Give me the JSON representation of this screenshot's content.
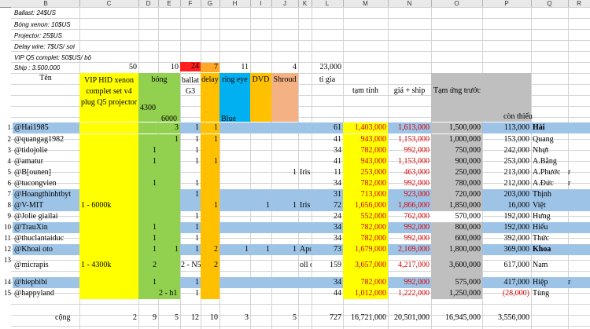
{
  "columns": [
    "B",
    "C",
    "D",
    "E",
    "F",
    "G",
    "H",
    "I",
    "J",
    "K",
    "L",
    "M",
    "N",
    "O",
    "P",
    "Q",
    "R"
  ],
  "notes": [
    "Ballast: 24$US",
    "Bóng xenon: 10$US",
    "Projector: 25$US",
    "Delay wire: 7$US/ sợi",
    "VIP Q5 complet: 50$US/ bộ",
    "Ship : 3.500.000"
  ],
  "counts": {
    "c": "50",
    "e": "10",
    "f": "24",
    "h": "11",
    "j": "4",
    "l": "23,000"
  },
  "headers": {
    "ten": "Tên",
    "vip": "VIP HID xenon complet set v4 plug Q5 projector",
    "bong": "bóng",
    "b4300": "4300",
    "b6000": "6000",
    "ballat": "ballat G3",
    "delay": "delay",
    "ringeye": "ring eye",
    "blue": "Blue",
    "dvd": "DVD",
    "shroud": "Shroud",
    "tigia": "ti gia",
    "tamtinh": "tạm tính",
    "giaship": "giá + ship",
    "tamung": "Tạm ứng trước",
    "conthieu": "còn thiếu"
  },
  "rows": [
    {
      "n": "1",
      "name": "@Hai1985",
      "c": "",
      "d": "",
      "e": "3",
      "f": "1",
      "g": "1",
      "h": "",
      "i": "",
      "j": "",
      "k": "",
      "l": "61",
      "m": "1,403,000",
      "nn": "1,613,000",
      "o": "1,500,000",
      "p": "113,000",
      "q": "Hải",
      "r": ""
    },
    {
      "n": "2",
      "name": "@quangag1982",
      "c": "",
      "d": "",
      "e": "1",
      "f": "1",
      "g": "1",
      "h": "",
      "i": "",
      "j": "",
      "k": "",
      "l": "41",
      "m": "943,000",
      "nn": "1,153,000",
      "o": "1,000,000",
      "p": "153,000",
      "q": "Quang",
      "r": ""
    },
    {
      "n": "3",
      "name": "@tidojolie",
      "c": "",
      "d": "1",
      "e": "",
      "f": "1",
      "g": "",
      "h": "",
      "i": "",
      "j": "",
      "k": "",
      "l": "34",
      "m": "782,000",
      "nn": "992,000",
      "o": "750,000",
      "p": "242,000",
      "q": "Nhựt",
      "r": ""
    },
    {
      "n": "4",
      "name": "@amatur",
      "c": "",
      "d": "1",
      "e": "",
      "f": "1",
      "g": "1",
      "h": "",
      "i": "",
      "j": "",
      "k": "",
      "l": "41",
      "m": "943,000",
      "nn": "1,153,000",
      "o": "900,000",
      "p": "253,000",
      "q": "A.Bằng",
      "r": ""
    },
    {
      "n": "5",
      "name": "@B[ounen]",
      "c": "",
      "d": "",
      "e": "",
      "f": "",
      "g": "",
      "h": "",
      "i": "",
      "j": "1",
      "k": "Iris",
      "l": "11",
      "m": "253,000",
      "nn": "463,000",
      "o": "250,000",
      "p": "213,000",
      "q": "A.Phước",
      "r": "r"
    },
    {
      "n": "6",
      "name": "@tucongvien",
      "c": "",
      "d": "1",
      "e": "",
      "f": "1",
      "g": "",
      "h": "",
      "i": "",
      "j": "",
      "k": "",
      "l": "34",
      "m": "782,000",
      "nn": "992,000",
      "o": "780,000",
      "p": "212,000",
      "q": "A.Đức",
      "r": "r"
    },
    {
      "n": "7",
      "name": "@Hoangthinhtbyt",
      "c": "",
      "d": "",
      "e": "",
      "f": "1",
      "g": "",
      "h": "",
      "i": "",
      "j": "",
      "k": "",
      "l": "31",
      "m": "713,000",
      "nn": "923,000",
      "o": "720,000",
      "p": "203,000",
      "q": "Thịnh",
      "r": ""
    },
    {
      "n": "8",
      "name": "@V-MIT",
      "c": "1 - 6000k",
      "d": "",
      "e": "",
      "f": "",
      "g": "1",
      "h": "",
      "i": "1",
      "j": "1",
      "k": "Iris",
      "l": "72",
      "m": "1,656,000",
      "nn": "1,866,000",
      "o": "1,850,000",
      "p": "16,000",
      "q": "Việt",
      "r": ""
    },
    {
      "n": "9",
      "name": "@Jolie giailai",
      "c": "",
      "d": "",
      "e": "",
      "f": "1",
      "g": "",
      "h": "",
      "i": "",
      "j": "",
      "k": "",
      "l": "24",
      "m": "552,000",
      "nn": "762,000",
      "o": "570,000",
      "p": "192,000",
      "q": "Hưng",
      "r": ""
    },
    {
      "n": "10",
      "name": "@TrauXin",
      "c": "",
      "d": "1",
      "e": "",
      "f": "1",
      "g": "",
      "h": "",
      "i": "",
      "j": "",
      "k": "",
      "l": "34",
      "m": "782,000",
      "nn": "992,000",
      "o": "800,000",
      "p": "192,000",
      "q": "Hiếu",
      "r": ""
    },
    {
      "n": "11",
      "name": "@thuclantaiduc",
      "c": "",
      "d": "1",
      "e": "",
      "f": "1",
      "g": "",
      "h": "",
      "i": "",
      "j": "",
      "k": "",
      "l": "34",
      "m": "782,000",
      "nn": "992,000",
      "o": "600,000",
      "p": "392,000",
      "q": "Thức",
      "r": ""
    },
    {
      "n": "12",
      "name": "@Khoai oto",
      "c": "",
      "d": "1",
      "e": "1",
      "f": "1",
      "g": "2",
      "h": "1",
      "i": "1",
      "j": "1",
      "k": "Apo",
      "l": "73",
      "m": "1,679,000",
      "nn": "2,169,000",
      "o": "1,800,000",
      "p": "369,000",
      "q": "Khoa",
      "r": ""
    },
    {
      "n": "13",
      "name": "@micrapis",
      "c": "1 - 4300k",
      "d": "2",
      "e": "",
      "f": "2 - N5",
      "g": "2",
      "h": "",
      "i": "",
      "j": "",
      "k": "oll o",
      "l": "159",
      "m": "3,657,000",
      "nn": "4,217,000",
      "o": "3,600,000",
      "p": "617,000",
      "q": "Nam",
      "r": ""
    },
    {
      "n": "14",
      "name": "@hiepbibi",
      "c": "",
      "d": "1",
      "e": "",
      "f": "1",
      "g": "",
      "h": "",
      "i": "",
      "j": "",
      "k": "",
      "l": "34",
      "m": "782,000",
      "nn": "992,000",
      "o": "575,000",
      "p": "417,000",
      "q": "Hiệp",
      "r": "r"
    },
    {
      "n": "15",
      "name": "@happyland",
      "c": "",
      "d": "",
      "e": "2 - h1",
      "f": "1",
      "g": "",
      "h": "",
      "i": "",
      "j": "",
      "k": "",
      "l": "44",
      "m": "1,012,000",
      "nn": "1,222,000",
      "o": "1,250,000",
      "p": "(28,000)",
      "q": "Tùng",
      "r": ""
    }
  ],
  "totals": {
    "label": "cộng",
    "c": "2",
    "d": "9",
    "e": "5",
    "f": "12",
    "g": "10",
    "h": "3",
    "j": "5",
    "l": "727",
    "m": "16,721,000",
    "nn": "20,501,000",
    "o": "16,945,000",
    "p": "3,556,000"
  }
}
